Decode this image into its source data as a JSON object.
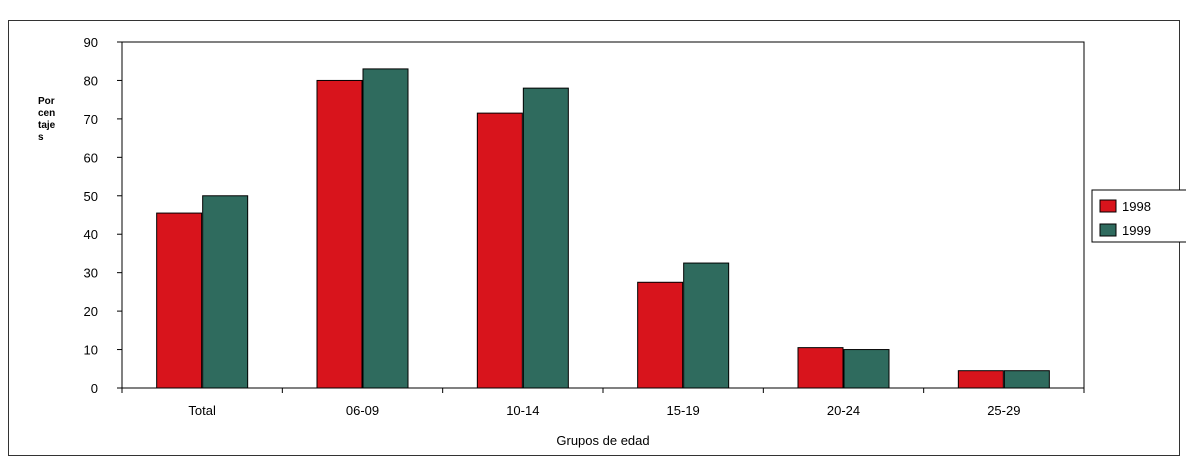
{
  "chart_data": {
    "type": "bar",
    "categories": [
      "Total",
      "06-09",
      "10-14",
      "15-19",
      "20-24",
      "25-29"
    ],
    "series": [
      {
        "name": "1998",
        "values": [
          45.5,
          80,
          71.5,
          27.5,
          10.5,
          4.5
        ],
        "color": "#d8141c"
      },
      {
        "name": "1999",
        "values": [
          50,
          83,
          78,
          32.5,
          10,
          4.5
        ],
        "color": "#2f6b5e"
      }
    ],
    "title": "",
    "xlabel": "Grupos de edad",
    "ylabel_lines": [
      "Por",
      "cen",
      "taje",
      "s"
    ],
    "ylim": [
      0,
      90
    ],
    "yticks": [
      0,
      10,
      20,
      30,
      40,
      50,
      60,
      70,
      80,
      90
    ],
    "grid": false,
    "legend": "right"
  }
}
